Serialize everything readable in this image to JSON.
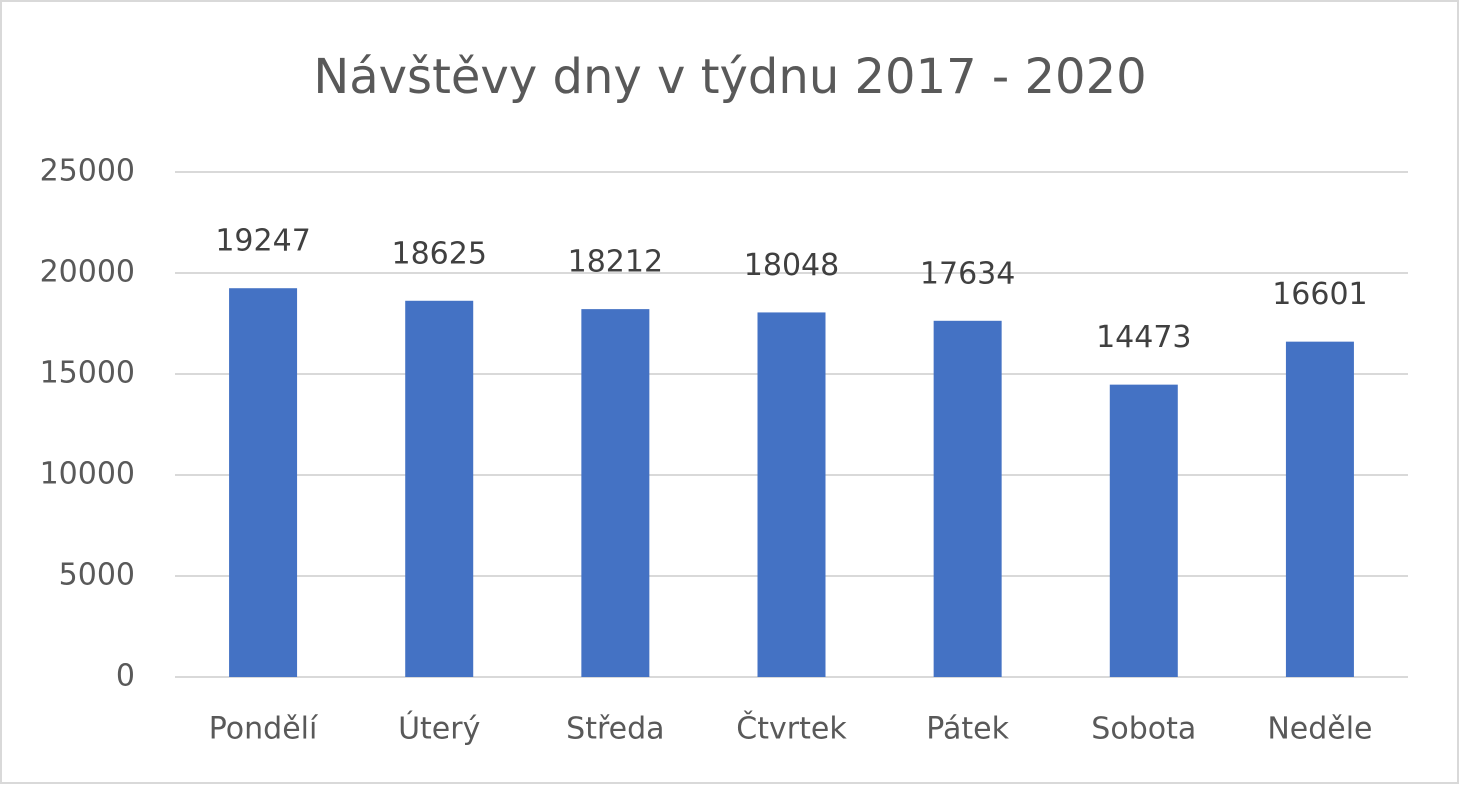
{
  "chart_data": {
    "type": "bar",
    "title": "Návštěvy dny v týdnu 2017 - 2020",
    "categories": [
      "Pondělí",
      "Úterý",
      "Středa",
      "Čtvrtek",
      "Pátek",
      "Sobota",
      "Neděle"
    ],
    "values": [
      19247,
      18625,
      18212,
      18048,
      17634,
      14473,
      16601
    ],
    "color": "#4472c4",
    "ylim": [
      0,
      25000
    ],
    "yticks": [
      0,
      5000,
      10000,
      15000,
      20000,
      25000
    ],
    "grid": true
  }
}
